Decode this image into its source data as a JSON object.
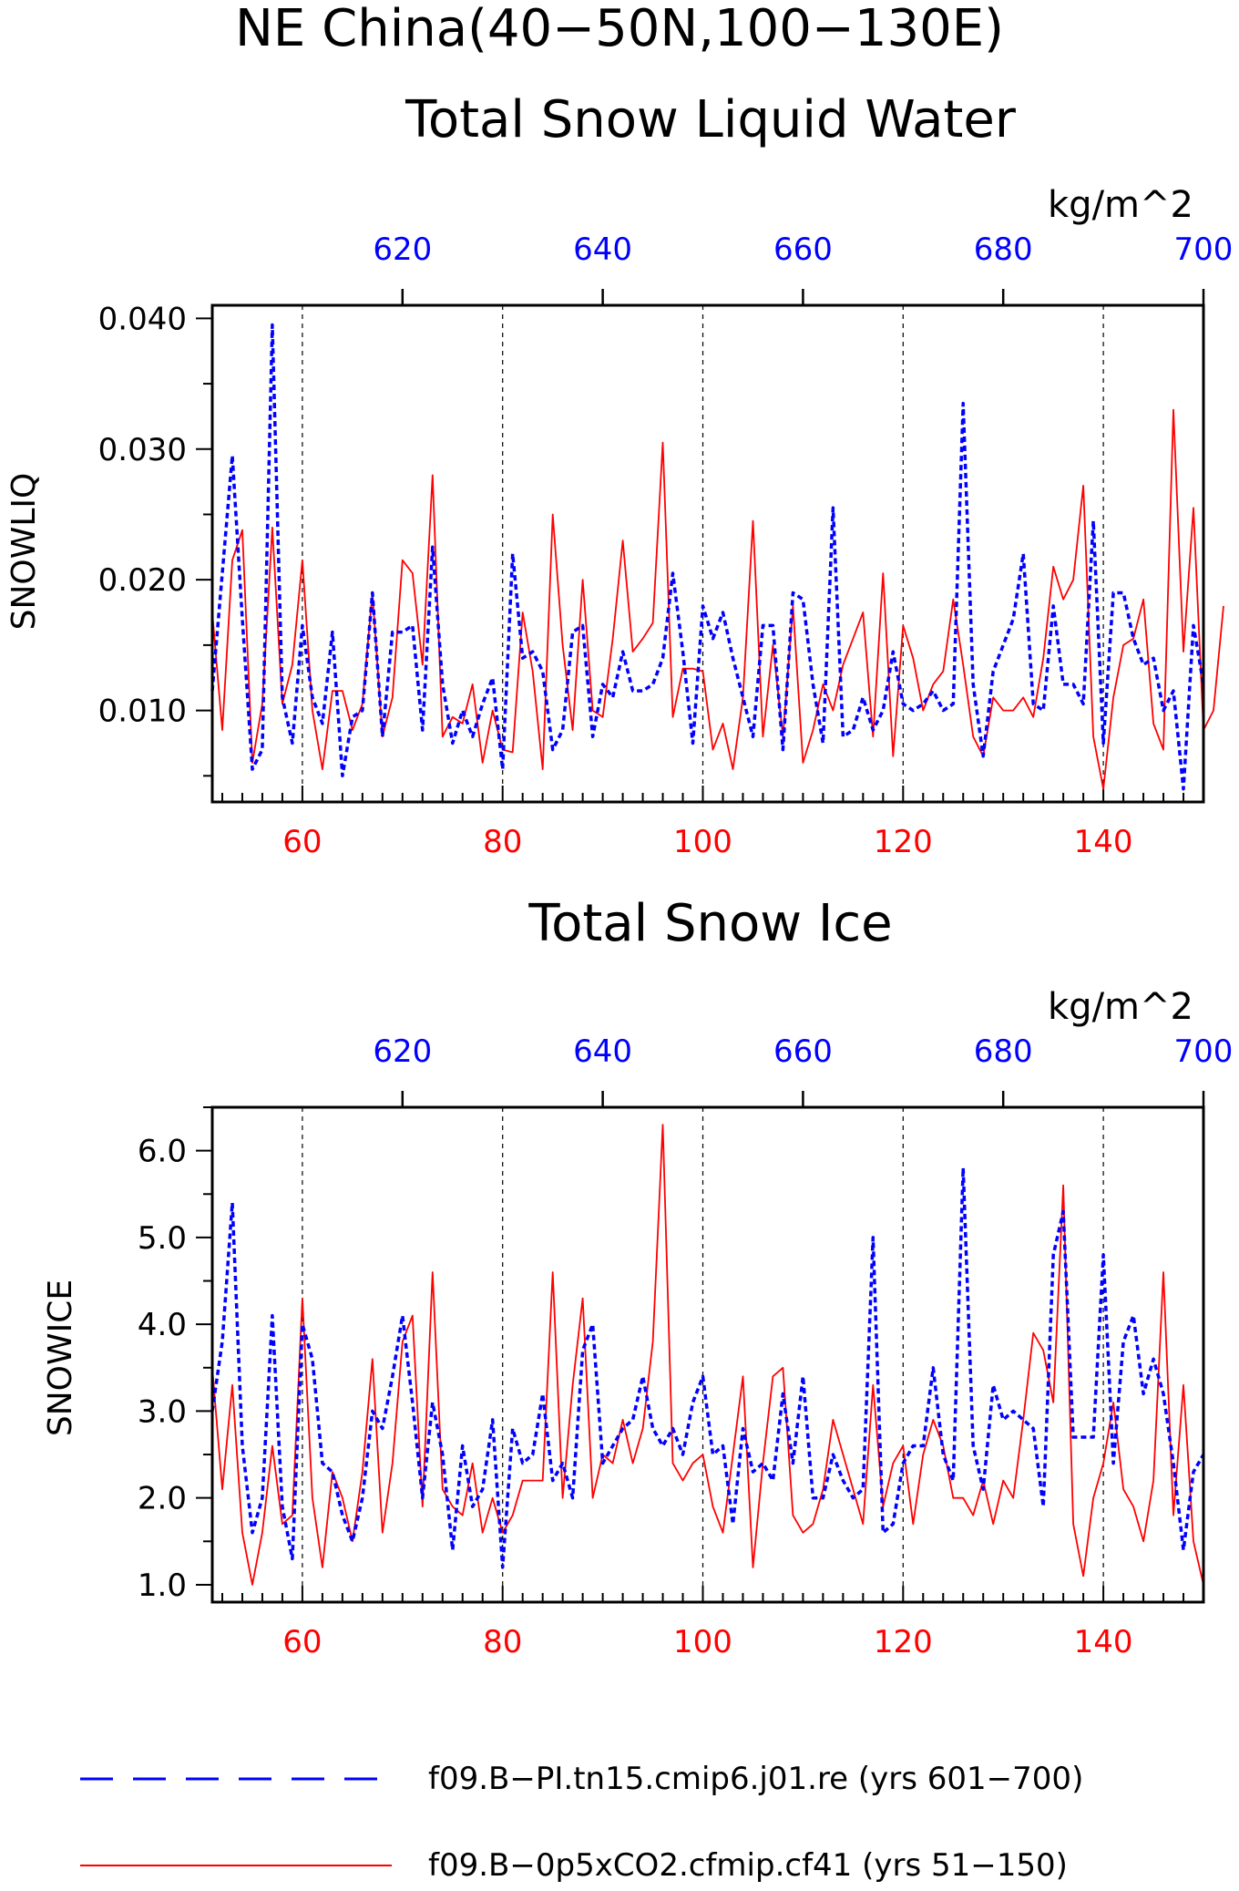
{
  "figure": {
    "title": "NE China(40−50N,100−130E)",
    "colors": {
      "red": "#ff0000",
      "blue": "#0000ff",
      "black": "#000000"
    }
  },
  "legend": {
    "items": [
      {
        "label": "f09.B−PI.tn15.cmip6.j01.re (yrs 601−700)",
        "color": "#0000ff",
        "style": "dashed"
      },
      {
        "label": "f09.B−0p5xCO2.cfmip.cf41 (yrs 51−150)",
        "color": "#ff0000",
        "style": "solid"
      }
    ]
  },
  "chart_data": [
    {
      "type": "line",
      "title": "Total Snow Liquid Water",
      "ylabel": "SNOWLIQ",
      "top_axis_units": "kg/m^2",
      "ylim": [
        0.003,
        0.041
      ],
      "yticks": [
        0.01,
        0.02,
        0.03,
        0.04
      ],
      "ytick_labels": [
        "0.010",
        "0.020",
        "0.030",
        "0.040"
      ],
      "xlim_bottom": [
        51,
        150
      ],
      "xticks_bottom": [
        60,
        80,
        100,
        120,
        140
      ],
      "xlim_top": [
        601,
        700
      ],
      "xticks_top": [
        620,
        640,
        660,
        680,
        700
      ],
      "grid": "vertical dashed at bottom ticks",
      "series": [
        {
          "name": "f09.B−0p5xCO2.cfmip.cf41 (yrs 51−150)",
          "axis": "bottom",
          "color": "#ff0000",
          "style": "solid",
          "x_start": 51,
          "values": [
            0.0175,
            0.0085,
            0.0215,
            0.0238,
            0.006,
            0.0105,
            0.024,
            0.0105,
            0.0135,
            0.0215,
            0.01,
            0.0055,
            0.0115,
            0.0115,
            0.0085,
            0.0105,
            0.019,
            0.008,
            0.011,
            0.0215,
            0.0205,
            0.0135,
            0.028,
            0.008,
            0.0095,
            0.009,
            0.012,
            0.006,
            0.01,
            0.007,
            0.0068,
            0.0175,
            0.013,
            0.0055,
            0.025,
            0.015,
            0.0085,
            0.02,
            0.01,
            0.0095,
            0.0155,
            0.023,
            0.0145,
            0.0155,
            0.0167,
            0.0305,
            0.0095,
            0.0132,
            0.0132,
            0.013,
            0.007,
            0.009,
            0.0055,
            0.011,
            0.0245,
            0.008,
            0.015,
            0.008,
            0.018,
            0.006,
            0.0085,
            0.012,
            0.01,
            0.0135,
            0.0155,
            0.0175,
            0.008,
            0.0205,
            0.0065,
            0.0165,
            0.014,
            0.01,
            0.012,
            0.013,
            0.0185,
            0.0135,
            0.008,
            0.0065,
            0.011,
            0.01,
            0.01,
            0.011,
            0.0095,
            0.014,
            0.021,
            0.0185,
            0.02,
            0.0272,
            0.008,
            0.004,
            0.011,
            0.015,
            0.0155,
            0.0185,
            0.009,
            0.007,
            0.033,
            0.0145,
            0.0255,
            0.0085,
            0.01,
            0.018
          ]
        },
        {
          "name": "f09.B−PI.tn15.cmip6.j01.re (yrs 601−700)",
          "axis": "top",
          "color": "#0000ff",
          "style": "dashed",
          "x_start": 601,
          "values": [
            0.0115,
            0.0205,
            0.0295,
            0.017,
            0.0055,
            0.007,
            0.0395,
            0.011,
            0.0075,
            0.0165,
            0.011,
            0.009,
            0.016,
            0.005,
            0.0095,
            0.01,
            0.019,
            0.008,
            0.016,
            0.016,
            0.0165,
            0.0085,
            0.0225,
            0.012,
            0.0075,
            0.01,
            0.008,
            0.0105,
            0.0125,
            0.0055,
            0.022,
            0.014,
            0.0145,
            0.013,
            0.007,
            0.0085,
            0.016,
            0.0165,
            0.008,
            0.012,
            0.011,
            0.0145,
            0.0115,
            0.0115,
            0.012,
            0.014,
            0.0205,
            0.0145,
            0.0075,
            0.018,
            0.0155,
            0.0175,
            0.014,
            0.011,
            0.008,
            0.0165,
            0.0165,
            0.007,
            0.019,
            0.0185,
            0.012,
            0.0075,
            0.0255,
            0.008,
            0.0085,
            0.011,
            0.0085,
            0.01,
            0.0145,
            0.0105,
            0.01,
            0.0105,
            0.0115,
            0.01,
            0.0105,
            0.0335,
            0.012,
            0.0065,
            0.013,
            0.015,
            0.017,
            0.022,
            0.0105,
            0.01,
            0.018,
            0.012,
            0.012,
            0.0105,
            0.0245,
            0.0075,
            0.019,
            0.019,
            0.0155,
            0.0135,
            0.014,
            0.01,
            0.0115,
            0.004,
            0.0165,
            0.012
          ]
        }
      ]
    },
    {
      "type": "line",
      "title": "Total Snow Ice",
      "ylabel": "SNOWICE",
      "top_axis_units": "kg/m^2",
      "ylim": [
        0.8,
        6.5
      ],
      "yticks": [
        1.0,
        2.0,
        3.0,
        4.0,
        5.0,
        6.0
      ],
      "ytick_labels": [
        "1.0",
        "2.0",
        "3.0",
        "4.0",
        "5.0",
        "6.0"
      ],
      "xlim_bottom": [
        51,
        150
      ],
      "xticks_bottom": [
        60,
        80,
        100,
        120,
        140
      ],
      "xlim_top": [
        601,
        700
      ],
      "xticks_top": [
        620,
        640,
        660,
        680,
        700
      ],
      "grid": "vertical dashed at bottom ticks",
      "series": [
        {
          "name": "f09.B−0p5xCO2.cfmip.cf41 (yrs 51−150)",
          "axis": "bottom",
          "color": "#ff0000",
          "style": "solid",
          "x_start": 51,
          "values": [
            3.5,
            2.1,
            3.3,
            1.6,
            1.0,
            1.6,
            2.6,
            1.7,
            1.8,
            4.3,
            2.0,
            1.2,
            2.3,
            2.0,
            1.5,
            2.3,
            3.6,
            1.6,
            2.4,
            3.8,
            4.1,
            1.9,
            4.6,
            2.1,
            1.9,
            1.8,
            2.4,
            1.6,
            2.0,
            1.6,
            1.8,
            2.2,
            2.2,
            2.2,
            4.6,
            2.0,
            3.3,
            4.3,
            2.0,
            2.5,
            2.4,
            2.9,
            2.4,
            2.8,
            3.8,
            6.3,
            2.4,
            2.2,
            2.4,
            2.5,
            1.9,
            1.6,
            2.5,
            3.4,
            1.2,
            2.4,
            3.4,
            3.5,
            1.8,
            1.6,
            1.7,
            2.1,
            2.9,
            2.5,
            2.1,
            1.7,
            3.3,
            1.9,
            2.4,
            2.6,
            1.7,
            2.5,
            2.9,
            2.6,
            2.0,
            2.0,
            1.8,
            2.2,
            1.7,
            2.2,
            2.0,
            2.9,
            3.9,
            3.7,
            3.1,
            5.6,
            1.7,
            1.1,
            2.0,
            2.4,
            3.1,
            2.1,
            1.9,
            1.5,
            2.2,
            4.6,
            1.8,
            3.3,
            1.5,
            1.0
          ]
        },
        {
          "name": "f09.B−PI.tn15.cmip6.j01.re (yrs 601−700)",
          "axis": "top",
          "color": "#0000ff",
          "style": "dashed",
          "x_start": 601,
          "values": [
            3.0,
            3.8,
            5.4,
            2.6,
            1.6,
            2.0,
            4.1,
            1.9,
            1.3,
            4.0,
            3.6,
            2.4,
            2.3,
            1.8,
            1.5,
            2.0,
            3.0,
            2.8,
            3.4,
            4.1,
            3.1,
            2.0,
            3.1,
            2.5,
            1.4,
            2.6,
            1.9,
            2.1,
            2.9,
            1.2,
            2.8,
            2.4,
            2.5,
            3.2,
            2.2,
            2.4,
            2.0,
            3.7,
            4.0,
            2.4,
            2.6,
            2.8,
            2.9,
            3.4,
            2.8,
            2.6,
            2.8,
            2.5,
            3.1,
            3.4,
            2.5,
            2.6,
            1.7,
            2.8,
            2.3,
            2.4,
            2.2,
            3.2,
            2.4,
            3.4,
            2.0,
            2.0,
            2.5,
            2.2,
            2.0,
            2.1,
            5.0,
            1.6,
            1.7,
            2.4,
            2.6,
            2.6,
            3.5,
            2.5,
            2.2,
            5.8,
            2.6,
            2.1,
            3.3,
            2.9,
            3.0,
            2.9,
            2.8,
            1.9,
            4.8,
            5.3,
            2.7,
            2.7,
            2.7,
            4.8,
            2.4,
            3.8,
            4.1,
            3.2,
            3.6,
            3.2,
            2.4,
            1.4,
            2.3,
            2.5
          ]
        }
      ]
    }
  ]
}
